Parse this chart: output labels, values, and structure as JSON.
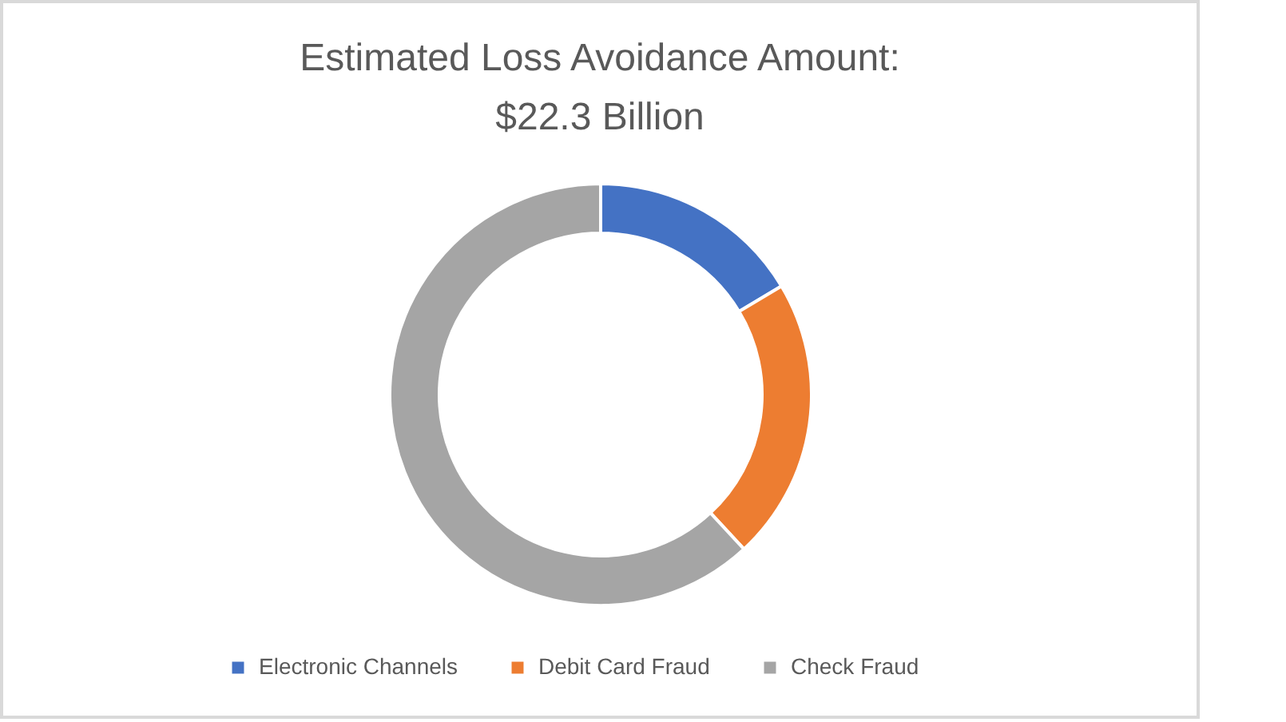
{
  "chart_data": {
    "type": "donut",
    "title": "Estimated Loss Avoidance Amount:\n$22.3 Billion",
    "categories": [
      "Electronic Channels",
      "Debit Card Fraud",
      "Check Fraud"
    ],
    "values": [
      16.4,
      21.7,
      61.9
    ],
    "colors": [
      "#4472c4",
      "#ed7d31",
      "#a5a5a5"
    ],
    "legend": "bottom"
  }
}
